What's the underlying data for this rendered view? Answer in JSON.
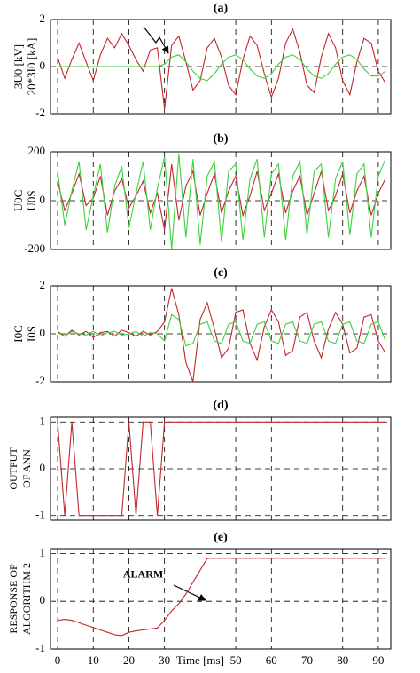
{
  "chart_data": [
    {
      "type": "line",
      "title": "(a)",
      "xlim": [
        -2,
        93.5
      ],
      "ylim": [
        -2,
        2
      ],
      "yticks": [
        -2,
        0,
        2
      ],
      "grid": true,
      "x": [
        0,
        2,
        4,
        6,
        8,
        10,
        12,
        14,
        16,
        18,
        20,
        22,
        24,
        26,
        28,
        30,
        32,
        34,
        36,
        38,
        40,
        42,
        44,
        46,
        48,
        50,
        52,
        54,
        56,
        58,
        60,
        62,
        64,
        66,
        68,
        70,
        72,
        74,
        76,
        78,
        80,
        82,
        84,
        86,
        88,
        90,
        92
      ],
      "series": [
        {
          "name": "3U0 [kV]",
          "color": "#c0272d",
          "values": [
            0.4,
            -0.5,
            0.3,
            1.0,
            0.2,
            -0.6,
            0.5,
            1.2,
            0.8,
            1.4,
            0.9,
            0.3,
            -0.2,
            0.7,
            0.8,
            -1.8,
            0.9,
            1.3,
            0.2,
            -1.0,
            -0.6,
            0.8,
            1.2,
            0.4,
            -0.8,
            -1.2,
            0.3,
            1.3,
            0.9,
            -0.3,
            -1.3,
            -0.5,
            1.0,
            1.6,
            0.6,
            -0.8,
            -1.1,
            0.4,
            1.4,
            0.8,
            -0.6,
            -1.2,
            0.2,
            1.2,
            1.0,
            -0.2,
            -0.7
          ]
        },
        {
          "name": "20*3I0 [kA]",
          "color": "#3cd23c",
          "values": [
            0,
            0,
            0,
            0,
            0,
            0,
            0,
            0,
            0,
            0,
            0,
            0,
            0,
            0,
            0,
            0.1,
            0.4,
            0.5,
            0.2,
            -0.2,
            -0.5,
            -0.6,
            -0.3,
            0.1,
            0.4,
            0.5,
            0.3,
            -0.1,
            -0.4,
            -0.5,
            -0.3,
            0.1,
            0.4,
            0.5,
            0.3,
            -0.1,
            -0.4,
            -0.5,
            -0.3,
            0.1,
            0.4,
            0.5,
            0.3,
            -0.1,
            -0.4,
            -0.4,
            -0.2
          ]
        }
      ]
    },
    {
      "type": "line",
      "title": "(b)",
      "xlim": [
        -2,
        93.5
      ],
      "ylim": [
        -200,
        200
      ],
      "yticks": [
        -200,
        0,
        200
      ],
      "grid": true,
      "x": [
        0,
        2,
        4,
        6,
        8,
        10,
        12,
        14,
        16,
        18,
        20,
        22,
        24,
        26,
        28,
        30,
        32,
        34,
        36,
        38,
        40,
        42,
        44,
        46,
        48,
        50,
        52,
        54,
        56,
        58,
        60,
        62,
        64,
        66,
        68,
        70,
        72,
        74,
        76,
        78,
        80,
        82,
        84,
        86,
        88,
        90,
        92
      ],
      "series": [
        {
          "name": "U0C",
          "color": "#c0272d",
          "values": [
            80,
            -40,
            30,
            110,
            -20,
            10,
            100,
            -60,
            40,
            90,
            -30,
            20,
            80,
            -50,
            30,
            -120,
            150,
            -80,
            60,
            120,
            -60,
            30,
            110,
            -50,
            40,
            100,
            -60,
            20,
            120,
            -40,
            30,
            110,
            -50,
            40,
            100,
            -60,
            30,
            120,
            -40,
            20,
            110,
            -50,
            40,
            100,
            -60,
            30,
            90
          ]
        },
        {
          "name": "U0S",
          "color": "#3cd23c",
          "values": [
            120,
            -100,
            40,
            160,
            -120,
            20,
            150,
            -130,
            60,
            140,
            -110,
            30,
            160,
            -120,
            50,
            180,
            -200,
            190,
            -150,
            170,
            -180,
            100,
            160,
            -170,
            120,
            150,
            -160,
            90,
            170,
            -150,
            110,
            150,
            -160,
            100,
            160,
            -140,
            120,
            150,
            -150,
            90,
            160,
            -140,
            110,
            150,
            -150,
            100,
            170
          ]
        }
      ]
    },
    {
      "type": "line",
      "title": "(c)",
      "xlim": [
        -2,
        93.5
      ],
      "ylim": [
        -2,
        2
      ],
      "yticks": [
        -2,
        0,
        2
      ],
      "grid": true,
      "x": [
        0,
        2,
        4,
        6,
        8,
        10,
        12,
        14,
        16,
        18,
        20,
        22,
        24,
        26,
        28,
        30,
        32,
        34,
        36,
        38,
        40,
        42,
        44,
        46,
        48,
        50,
        52,
        54,
        56,
        58,
        60,
        62,
        64,
        66,
        68,
        70,
        72,
        74,
        76,
        78,
        80,
        82,
        84,
        86,
        88,
        90,
        92
      ],
      "series": [
        {
          "name": "I0C",
          "color": "#c0272d",
          "values": [
            0.1,
            -0.1,
            0.15,
            -0.05,
            0.1,
            -0.15,
            0.05,
            0.1,
            -0.1,
            0.15,
            0.05,
            -0.1,
            0.1,
            -0.05,
            0.1,
            0.5,
            1.9,
            0.8,
            -1.2,
            -2.0,
            0.6,
            1.3,
            0.2,
            -1.0,
            -0.6,
            0.9,
            1.0,
            -0.4,
            -1.1,
            0.3,
            1.0,
            0.5,
            -0.9,
            -0.7,
            0.7,
            0.9,
            -0.3,
            -1.0,
            0.2,
            0.9,
            0.4,
            -0.8,
            -0.6,
            0.7,
            0.8,
            -0.3,
            -0.8
          ]
        },
        {
          "name": "I0S",
          "color": "#3cd23c",
          "values": [
            0.05,
            -0.1,
            0.1,
            0,
            -0.05,
            0.1,
            -0.1,
            0.05,
            0.1,
            -0.05,
            0,
            0.1,
            -0.1,
            0.05,
            0,
            -0.3,
            0.8,
            0.6,
            -0.5,
            -0.4,
            0.4,
            0.5,
            -0.3,
            -0.4,
            0.4,
            0.5,
            -0.3,
            -0.4,
            0.4,
            0.5,
            -0.3,
            -0.4,
            0.4,
            0.5,
            -0.3,
            -0.4,
            0.4,
            0.5,
            -0.3,
            -0.4,
            0.4,
            0.5,
            -0.3,
            -0.4,
            0.4,
            0.5,
            -0.3
          ]
        }
      ]
    },
    {
      "type": "line",
      "title": "(d)",
      "xlim": [
        -2,
        93.5
      ],
      "ylim": [
        -1.1,
        1.1
      ],
      "yticks": [
        -1,
        0,
        1
      ],
      "grid": true,
      "ylabel": [
        "OUTPUT",
        "OF ANN"
      ],
      "x": [
        0,
        2,
        4,
        6,
        8,
        10,
        12,
        14,
        16,
        18,
        20,
        22,
        24,
        26,
        28,
        30,
        32,
        34,
        36,
        38,
        40,
        42,
        44,
        46,
        48,
        50,
        52,
        54,
        56,
        58,
        60,
        62,
        64,
        66,
        68,
        70,
        72,
        74,
        76,
        78,
        80,
        82,
        84,
        86,
        88,
        90,
        92
      ],
      "series": [
        {
          "color": "#c0272d",
          "values": [
            1,
            -1,
            1,
            -1,
            -1,
            -1,
            -1,
            -1,
            -1,
            -1,
            1,
            -1,
            1,
            1,
            -1,
            1,
            1,
            1,
            1,
            1,
            1,
            1,
            1,
            1,
            1,
            1,
            1,
            1,
            1,
            1,
            1,
            1,
            1,
            1,
            1,
            1,
            1,
            1,
            1,
            1,
            1,
            1,
            1,
            1,
            1,
            1,
            1
          ]
        }
      ]
    },
    {
      "type": "line",
      "title": "(e)",
      "xlim": [
        -2,
        93.5
      ],
      "ylim": [
        -1,
        1.1
      ],
      "yticks": [
        -1,
        0,
        1
      ],
      "grid": true,
      "ylabel": [
        "RESPONSE OF",
        "ALGORITHM 2"
      ],
      "annotation": "ALARM",
      "xlabel": "Time [ms]",
      "xticks": [
        0,
        10,
        20,
        30,
        50,
        60,
        70,
        80,
        90
      ],
      "x": [
        0,
        2,
        4,
        6,
        8,
        10,
        12,
        14,
        16,
        18,
        20,
        22,
        24,
        26,
        28,
        30,
        32,
        34,
        36,
        38,
        40,
        42,
        44,
        46,
        48,
        50,
        52,
        54,
        56,
        58,
        60,
        62,
        64,
        66,
        68,
        70,
        72,
        74,
        76,
        78,
        80,
        82,
        84,
        86,
        88,
        90,
        92
      ],
      "series": [
        {
          "color": "#c0272d",
          "values": [
            -0.4,
            -0.38,
            -0.4,
            -0.45,
            -0.5,
            -0.55,
            -0.6,
            -0.65,
            -0.7,
            -0.72,
            -0.65,
            -0.62,
            -0.6,
            -0.58,
            -0.56,
            -0.4,
            -0.2,
            -0.05,
            0.15,
            0.4,
            0.65,
            0.9,
            0.9,
            0.9,
            0.9,
            0.9,
            0.9,
            0.9,
            0.9,
            0.9,
            0.9,
            0.9,
            0.9,
            0.9,
            0.9,
            0.9,
            0.9,
            0.9,
            0.9,
            0.9,
            0.9,
            0.9,
            0.9,
            0.9,
            0.9,
            0.9,
            0.9
          ]
        }
      ]
    }
  ]
}
